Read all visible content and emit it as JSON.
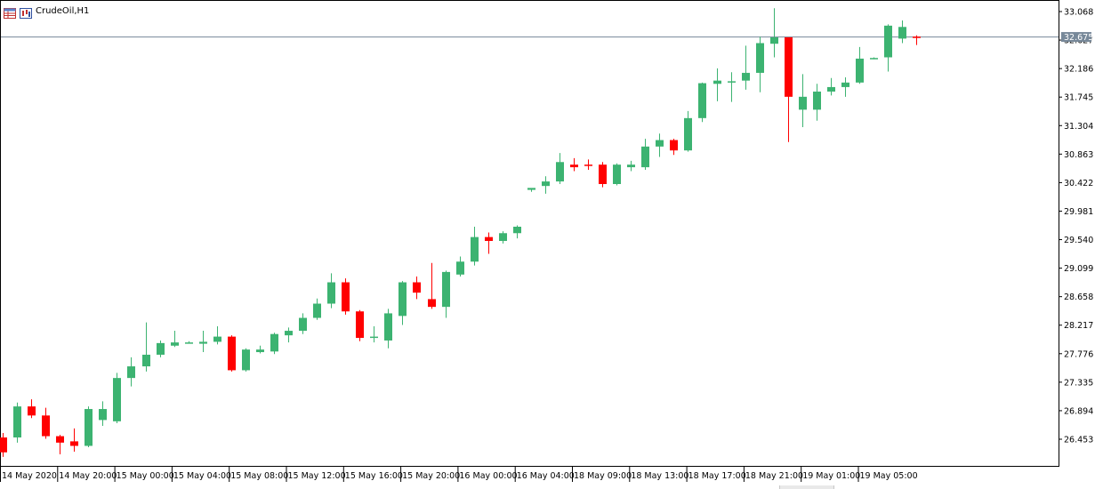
{
  "window": {
    "title": "CrudeOil,H1",
    "icons": [
      "table-icon",
      "chart-icon"
    ]
  },
  "colors": {
    "bull": "#3cb371",
    "bear": "#ff0000",
    "current_price_line": "#778899",
    "current_price_tag": "#778899",
    "axis": "#000000",
    "background": "#ffffff"
  },
  "chart_data": {
    "type": "candlestick",
    "symbol": "CrudeOil",
    "timeframe": "H1",
    "current_price": "32.675",
    "y_ticks": [
      "33.068",
      "32.627",
      "32.186",
      "31.745",
      "31.304",
      "30.863",
      "30.422",
      "29.981",
      "29.540",
      "29.099",
      "28.658",
      "28.217",
      "27.776",
      "27.335",
      "26.894",
      "26.453"
    ],
    "x_labels": [
      "14 May 2020",
      "14 May 20:00",
      "15 May 00:00",
      "15 May 04:00",
      "15 May 08:00",
      "15 May 12:00",
      "15 May 16:00",
      "15 May 20:00",
      "16 May 00:00",
      "16 May 04:00",
      "18 May 09:00",
      "18 May 13:00",
      "18 May 17:00",
      "18 May 21:00",
      "19 May 01:00",
      "19 May 05:00"
    ],
    "ylim": [
      26.16,
      33.16
    ],
    "candles": [
      {
        "o": 26.48,
        "h": 26.55,
        "l": 26.18,
        "c": 26.25
      },
      {
        "o": 26.48,
        "h": 27.02,
        "l": 26.4,
        "c": 26.96
      },
      {
        "o": 26.96,
        "h": 27.07,
        "l": 26.78,
        "c": 26.82
      },
      {
        "o": 26.82,
        "h": 26.94,
        "l": 26.46,
        "c": 26.5
      },
      {
        "o": 26.5,
        "h": 26.52,
        "l": 26.22,
        "c": 26.4
      },
      {
        "o": 26.42,
        "h": 26.62,
        "l": 26.26,
        "c": 26.35
      },
      {
        "o": 26.35,
        "h": 26.96,
        "l": 26.33,
        "c": 26.92
      },
      {
        "o": 26.75,
        "h": 27.04,
        "l": 26.66,
        "c": 26.92
      },
      {
        "o": 26.73,
        "h": 27.48,
        "l": 26.7,
        "c": 27.4
      },
      {
        "o": 27.4,
        "h": 27.72,
        "l": 27.27,
        "c": 27.58
      },
      {
        "o": 27.58,
        "h": 28.26,
        "l": 27.5,
        "c": 27.76
      },
      {
        "o": 27.76,
        "h": 27.98,
        "l": 27.72,
        "c": 27.94
      },
      {
        "o": 27.9,
        "h": 28.13,
        "l": 27.88,
        "c": 27.95
      },
      {
        "o": 27.95,
        "h": 27.97,
        "l": 27.94,
        "c": 27.95
      },
      {
        "o": 27.93,
        "h": 28.13,
        "l": 27.8,
        "c": 27.96
      },
      {
        "o": 27.96,
        "h": 28.2,
        "l": 27.92,
        "c": 28.04
      },
      {
        "o": 28.04,
        "h": 28.06,
        "l": 27.5,
        "c": 27.52
      },
      {
        "o": 27.52,
        "h": 27.86,
        "l": 27.5,
        "c": 27.84
      },
      {
        "o": 27.8,
        "h": 27.9,
        "l": 27.78,
        "c": 27.84
      },
      {
        "o": 27.81,
        "h": 28.1,
        "l": 27.77,
        "c": 28.08
      },
      {
        "o": 28.06,
        "h": 28.18,
        "l": 27.95,
        "c": 28.13
      },
      {
        "o": 28.13,
        "h": 28.4,
        "l": 28.08,
        "c": 28.33
      },
      {
        "o": 28.33,
        "h": 28.63,
        "l": 28.3,
        "c": 28.55
      },
      {
        "o": 28.55,
        "h": 29.02,
        "l": 28.48,
        "c": 28.88
      },
      {
        "o": 28.88,
        "h": 28.94,
        "l": 28.38,
        "c": 28.43
      },
      {
        "o": 28.43,
        "h": 28.45,
        "l": 27.97,
        "c": 28.02
      },
      {
        "o": 28.02,
        "h": 28.2,
        "l": 27.95,
        "c": 28.04
      },
      {
        "o": 27.98,
        "h": 28.47,
        "l": 27.86,
        "c": 28.4
      },
      {
        "o": 28.36,
        "h": 28.9,
        "l": 28.22,
        "c": 28.88
      },
      {
        "o": 28.88,
        "h": 28.97,
        "l": 28.62,
        "c": 28.72
      },
      {
        "o": 28.62,
        "h": 29.18,
        "l": 28.47,
        "c": 28.5
      },
      {
        "o": 28.5,
        "h": 29.06,
        "l": 28.33,
        "c": 29.04
      },
      {
        "o": 29.0,
        "h": 29.28,
        "l": 28.97,
        "c": 29.2
      },
      {
        "o": 29.2,
        "h": 29.74,
        "l": 29.14,
        "c": 29.58
      },
      {
        "o": 29.58,
        "h": 29.65,
        "l": 29.32,
        "c": 29.52
      },
      {
        "o": 29.52,
        "h": 29.67,
        "l": 29.48,
        "c": 29.64
      },
      {
        "o": 29.64,
        "h": 29.76,
        "l": 29.56,
        "c": 29.74
      },
      {
        "o": 30.31,
        "h": 30.33,
        "l": 30.28,
        "c": 30.34
      },
      {
        "o": 30.37,
        "h": 30.52,
        "l": 30.25,
        "c": 30.44
      },
      {
        "o": 30.44,
        "h": 30.88,
        "l": 30.4,
        "c": 30.74
      },
      {
        "o": 30.7,
        "h": 30.8,
        "l": 30.6,
        "c": 30.66
      },
      {
        "o": 30.7,
        "h": 30.78,
        "l": 30.62,
        "c": 30.68
      },
      {
        "o": 30.7,
        "h": 30.74,
        "l": 30.35,
        "c": 30.4
      },
      {
        "o": 30.4,
        "h": 30.72,
        "l": 30.38,
        "c": 30.7
      },
      {
        "o": 30.66,
        "h": 30.76,
        "l": 30.6,
        "c": 30.7
      },
      {
        "o": 30.66,
        "h": 31.1,
        "l": 30.62,
        "c": 30.98
      },
      {
        "o": 30.98,
        "h": 31.18,
        "l": 30.82,
        "c": 31.08
      },
      {
        "o": 31.08,
        "h": 31.1,
        "l": 30.85,
        "c": 30.92
      },
      {
        "o": 30.92,
        "h": 31.53,
        "l": 30.9,
        "c": 31.42
      },
      {
        "o": 31.42,
        "h": 31.97,
        "l": 31.36,
        "c": 31.96
      },
      {
        "o": 31.95,
        "h": 32.19,
        "l": 31.68,
        "c": 32.0
      },
      {
        "o": 31.97,
        "h": 32.13,
        "l": 31.67,
        "c": 31.99
      },
      {
        "o": 32.0,
        "h": 32.54,
        "l": 31.86,
        "c": 32.12
      },
      {
        "o": 32.12,
        "h": 32.68,
        "l": 31.82,
        "c": 32.58
      },
      {
        "o": 32.57,
        "h": 33.12,
        "l": 32.36,
        "c": 32.67
      },
      {
        "o": 32.67,
        "h": 32.67,
        "l": 31.05,
        "c": 31.75
      },
      {
        "o": 31.55,
        "h": 32.1,
        "l": 31.28,
        "c": 31.75
      },
      {
        "o": 31.55,
        "h": 31.95,
        "l": 31.38,
        "c": 31.83
      },
      {
        "o": 31.83,
        "h": 32.04,
        "l": 31.77,
        "c": 31.9
      },
      {
        "o": 31.9,
        "h": 32.05,
        "l": 31.75,
        "c": 31.97
      },
      {
        "o": 31.97,
        "h": 32.52,
        "l": 31.95,
        "c": 32.34
      },
      {
        "o": 32.34,
        "h": 32.36,
        "l": 32.33,
        "c": 32.35
      },
      {
        "o": 32.36,
        "h": 32.87,
        "l": 32.14,
        "c": 32.85
      },
      {
        "o": 32.65,
        "h": 32.93,
        "l": 32.58,
        "c": 32.83
      },
      {
        "o": 32.68,
        "h": 32.7,
        "l": 32.55,
        "c": 32.66
      }
    ]
  }
}
